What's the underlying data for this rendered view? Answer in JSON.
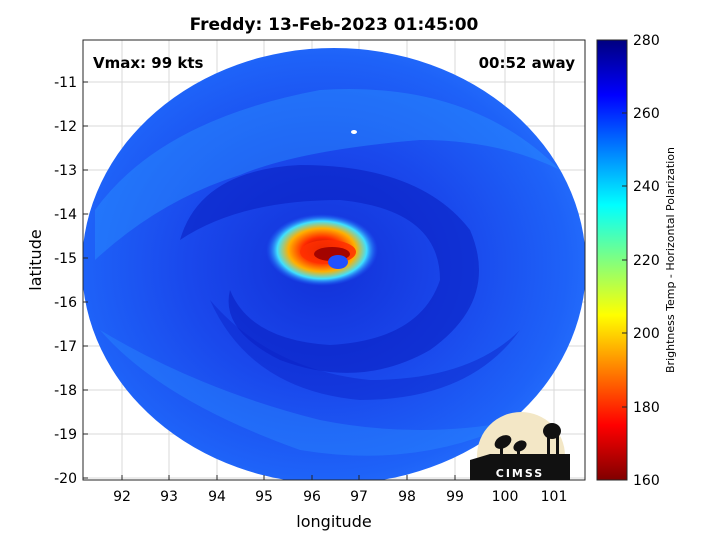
{
  "title": "Freddy: 13-Feb-2023 01:45:00",
  "annotations": {
    "vmax": "Vmax: 99 kts",
    "time_away": "00:52 away"
  },
  "x_axis": {
    "label": "longitude",
    "ticks": [
      "92",
      "93",
      "94",
      "95",
      "96",
      "97",
      "98",
      "99",
      "100",
      "101"
    ]
  },
  "y_axis": {
    "label": "latitude",
    "ticks": [
      "-11",
      "-12",
      "-13",
      "-14",
      "-15",
      "-16",
      "-17",
      "-18",
      "-19",
      "-20"
    ]
  },
  "colorbar": {
    "label": "Brightness Temp - Horizontal Polarization",
    "ticks": [
      "280",
      "260",
      "240",
      "220",
      "200",
      "180",
      "160"
    ],
    "range": [
      160,
      280
    ],
    "colormap": "jet"
  },
  "logo": {
    "text": "CIMSS"
  },
  "colors": {
    "background_swath": "#1f55f5",
    "eyewall": "#ff3a00",
    "eye": "#2050ff"
  }
}
